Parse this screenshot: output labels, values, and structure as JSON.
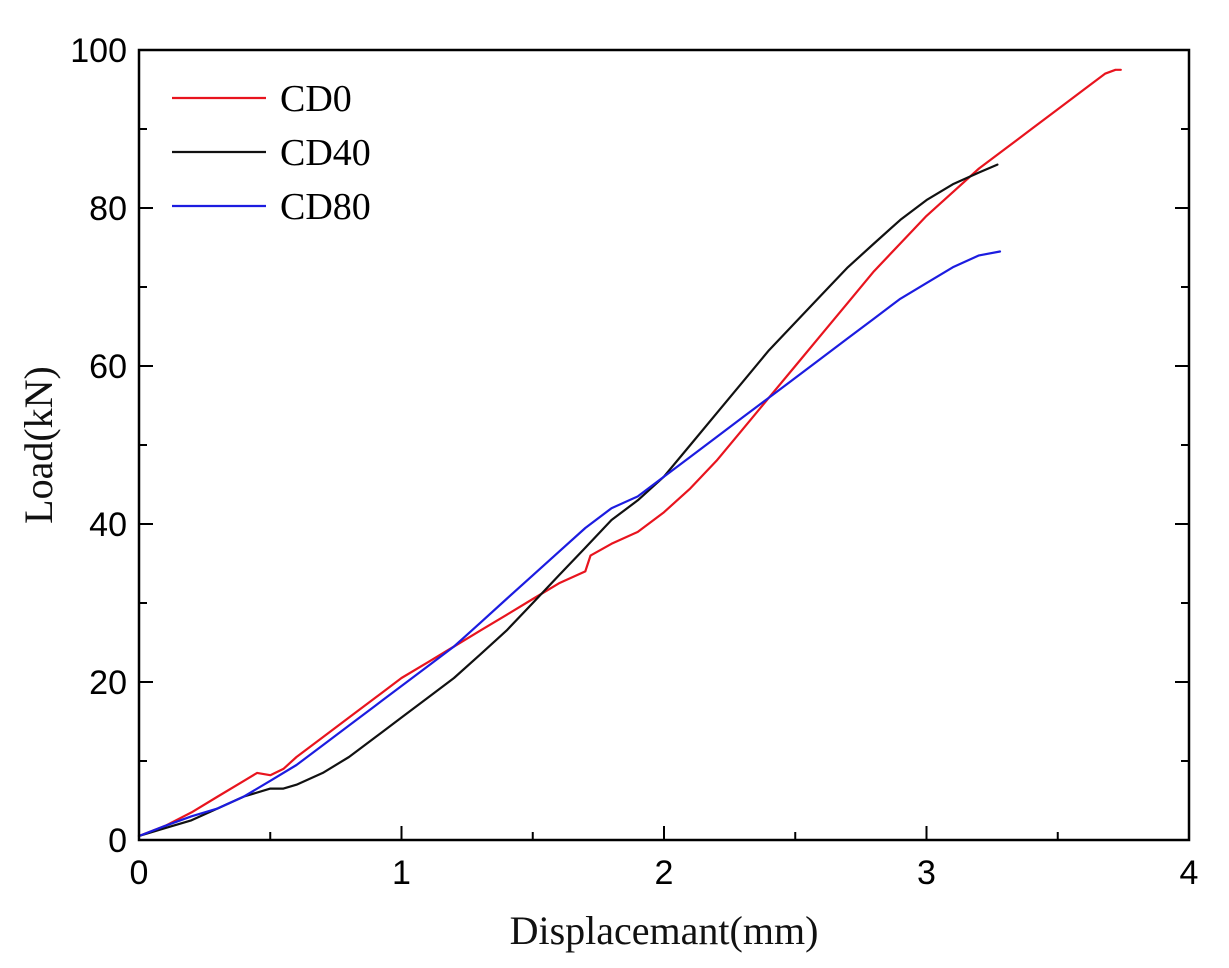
{
  "chart_data": {
    "type": "line",
    "title": "",
    "xlabel": "Displacemant(mm)",
    "ylabel": "Load(kN)",
    "xlim": [
      0,
      4
    ],
    "ylim": [
      0,
      100
    ],
    "xticks": [
      0,
      1,
      2,
      3,
      4
    ],
    "yticks": [
      0,
      20,
      40,
      60,
      80,
      100
    ],
    "grid": false,
    "legend_position": "top-left",
    "series": [
      {
        "name": "CD0",
        "color": "#e8141e",
        "x": [
          0,
          0.1,
          0.2,
          0.3,
          0.4,
          0.45,
          0.5,
          0.55,
          0.6,
          0.7,
          0.8,
          0.9,
          1.0,
          1.1,
          1.2,
          1.3,
          1.4,
          1.5,
          1.6,
          1.7,
          1.72,
          1.8,
          1.9,
          2.0,
          2.1,
          2.2,
          2.3,
          2.4,
          2.5,
          2.6,
          2.7,
          2.8,
          2.9,
          3.0,
          3.1,
          3.2,
          3.3,
          3.4,
          3.5,
          3.6,
          3.68,
          3.72,
          3.74
        ],
        "y": [
          0.5,
          1.8,
          3.5,
          5.5,
          7.5,
          8.5,
          8.2,
          9.0,
          10.5,
          13.0,
          15.5,
          18.0,
          20.5,
          22.5,
          24.5,
          26.5,
          28.5,
          30.5,
          32.5,
          34.0,
          36.0,
          37.5,
          39.0,
          41.5,
          44.5,
          48.0,
          52.0,
          56.0,
          60.0,
          64.0,
          68.0,
          72.0,
          75.5,
          79.0,
          82.0,
          85.0,
          87.5,
          90.0,
          92.5,
          95.0,
          97.0,
          97.5,
          97.5
        ]
      },
      {
        "name": "CD40",
        "color": "#111111",
        "x": [
          0,
          0.1,
          0.2,
          0.3,
          0.4,
          0.5,
          0.55,
          0.6,
          0.7,
          0.8,
          0.9,
          1.0,
          1.1,
          1.2,
          1.3,
          1.4,
          1.5,
          1.6,
          1.7,
          1.8,
          1.9,
          2.0,
          2.1,
          2.2,
          2.3,
          2.4,
          2.5,
          2.6,
          2.7,
          2.8,
          2.9,
          3.0,
          3.1,
          3.2,
          3.27
        ],
        "y": [
          0.5,
          1.5,
          2.5,
          4.0,
          5.5,
          6.5,
          6.5,
          7.0,
          8.5,
          10.5,
          13.0,
          15.5,
          18.0,
          20.5,
          23.5,
          26.5,
          30.0,
          33.5,
          37.0,
          40.5,
          43.0,
          46.0,
          50.0,
          54.0,
          58.0,
          62.0,
          65.5,
          69.0,
          72.5,
          75.5,
          78.5,
          81.0,
          83.0,
          84.5,
          85.5
        ]
      },
      {
        "name": "CD80",
        "color": "#1c1ce0",
        "x": [
          0,
          0.1,
          0.2,
          0.3,
          0.4,
          0.5,
          0.6,
          0.7,
          0.8,
          0.9,
          1.0,
          1.1,
          1.2,
          1.3,
          1.4,
          1.5,
          1.6,
          1.7,
          1.8,
          1.9,
          2.0,
          2.1,
          2.2,
          2.3,
          2.4,
          2.5,
          2.6,
          2.7,
          2.8,
          2.9,
          3.0,
          3.1,
          3.2,
          3.28
        ],
        "y": [
          0.5,
          1.8,
          3.0,
          4.0,
          5.5,
          7.5,
          9.5,
          12.0,
          14.5,
          17.0,
          19.5,
          22.0,
          24.5,
          27.5,
          30.5,
          33.5,
          36.5,
          39.5,
          42.0,
          43.5,
          46.0,
          48.5,
          51.0,
          53.5,
          56.0,
          58.5,
          61.0,
          63.5,
          66.0,
          68.5,
          70.5,
          72.5,
          74.0,
          74.5
        ]
      }
    ]
  }
}
